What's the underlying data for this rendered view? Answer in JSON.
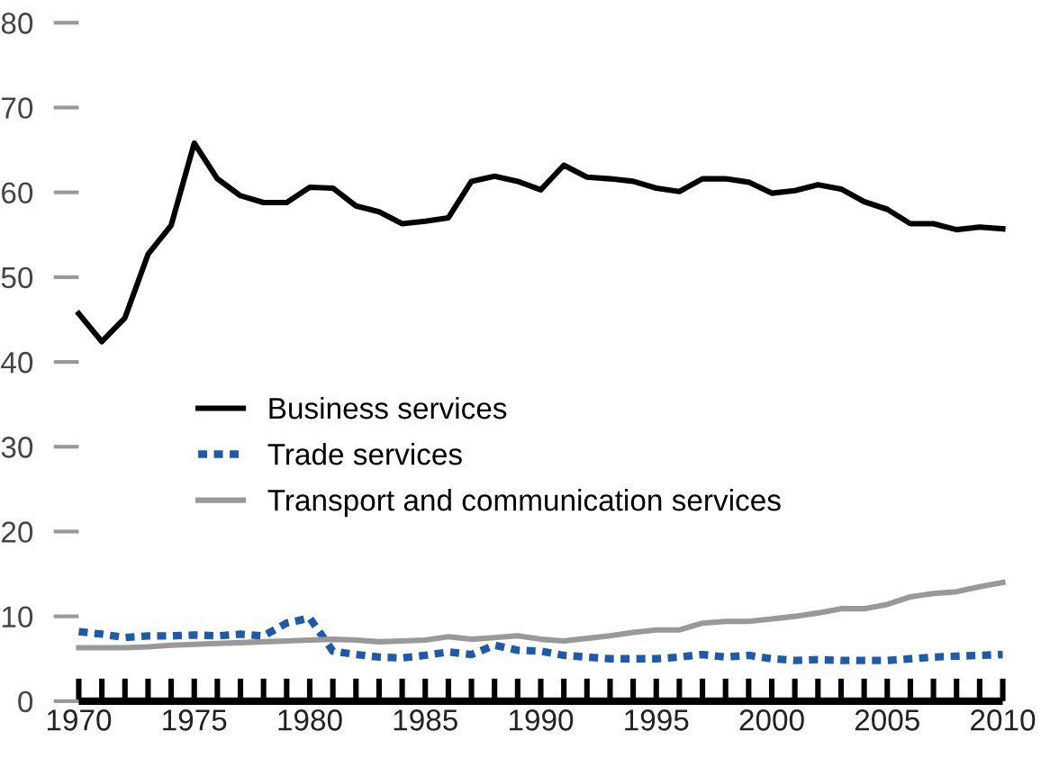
{
  "chart_data": {
    "type": "line",
    "x": [
      1970,
      1971,
      1972,
      1973,
      1974,
      1975,
      1976,
      1977,
      1978,
      1979,
      1980,
      1981,
      1982,
      1983,
      1984,
      1985,
      1986,
      1987,
      1988,
      1989,
      1990,
      1991,
      1992,
      1993,
      1994,
      1995,
      1996,
      1997,
      1998,
      1999,
      2000,
      2001,
      2002,
      2003,
      2004,
      2005,
      2006,
      2007,
      2008,
      2009,
      2010
    ],
    "series": [
      {
        "name": "Business services",
        "color": "#000000",
        "line_style": "solid",
        "values": [
          45.7,
          42.4,
          45.2,
          52.7,
          56.1,
          65.8,
          61.6,
          59.6,
          58.8,
          58.8,
          60.6,
          60.5,
          58.4,
          57.7,
          56.3,
          56.6,
          57.0,
          61.3,
          61.9,
          61.3,
          60.3,
          63.2,
          61.8,
          61.6,
          61.3,
          60.5,
          60.1,
          61.6,
          61.6,
          61.2,
          59.9,
          60.2,
          60.9,
          60.4,
          58.9,
          58.0,
          56.3,
          56.3,
          55.6,
          55.9,
          55.7
        ]
      },
      {
        "name": "Trade services",
        "color": "#1f5aa6",
        "line_style": "dotted",
        "values": [
          8.2,
          7.9,
          7.5,
          7.7,
          7.7,
          7.8,
          7.7,
          7.9,
          7.7,
          9.2,
          9.8,
          5.9,
          5.5,
          5.2,
          5.1,
          5.4,
          5.8,
          5.5,
          6.6,
          6.0,
          5.9,
          5.4,
          5.2,
          5.0,
          5.0,
          5.0,
          5.2,
          5.5,
          5.2,
          5.4,
          5.0,
          4.8,
          4.9,
          4.8,
          4.8,
          4.8,
          5.0,
          5.2,
          5.3,
          5.4,
          5.5
        ]
      },
      {
        "name": "Transport and communication services",
        "color": "#999999",
        "line_style": "solid",
        "values": [
          6.3,
          6.3,
          6.3,
          6.4,
          6.6,
          6.7,
          6.8,
          6.9,
          7.0,
          7.1,
          7.2,
          7.3,
          7.2,
          7.0,
          7.1,
          7.2,
          7.6,
          7.3,
          7.5,
          7.7,
          7.3,
          7.1,
          7.4,
          7.7,
          8.1,
          8.4,
          8.4,
          9.2,
          9.4,
          9.4,
          9.7,
          10.0,
          10.4,
          10.9,
          10.9,
          11.4,
          12.3,
          12.7,
          12.9,
          13.5,
          14.0
        ]
      }
    ],
    "xlim": [
      1970,
      2010
    ],
    "xticks": [
      1970,
      {
        "value": 1971,
        "label": null
      },
      {
        "value": 1972,
        "label": null
      },
      {
        "value": 1973,
        "label": null
      },
      {
        "value": 1974,
        "label": null
      },
      1975,
      {
        "value": 1976,
        "label": null
      },
      {
        "value": 1977,
        "label": null
      },
      {
        "value": 1978,
        "label": null
      },
      {
        "value": 1979,
        "label": null
      },
      1980,
      {
        "value": 1981,
        "label": null
      },
      {
        "value": 1982,
        "label": null
      },
      {
        "value": 1983,
        "label": null
      },
      {
        "value": 1984,
        "label": null
      },
      1985,
      {
        "value": 1986,
        "label": null
      },
      {
        "value": 1987,
        "label": null
      },
      {
        "value": 1988,
        "label": null
      },
      {
        "value": 1989,
        "label": null
      },
      1990,
      {
        "value": 1991,
        "label": null
      },
      {
        "value": 1992,
        "label": null
      },
      {
        "value": 1993,
        "label": null
      },
      {
        "value": 1994,
        "label": null
      },
      1995,
      {
        "value": 1996,
        "label": null
      },
      {
        "value": 1997,
        "label": null
      },
      {
        "value": 1998,
        "label": null
      },
      {
        "value": 1999,
        "label": null
      },
      2000,
      {
        "value": 2001,
        "label": null
      },
      {
        "value": 2002,
        "label": null
      },
      {
        "value": 2003,
        "label": null
      },
      {
        "value": 2004,
        "label": null
      },
      2005,
      {
        "value": 2006,
        "label": null
      },
      {
        "value": 2007,
        "label": null
      },
      {
        "value": 2008,
        "label": null
      },
      {
        "value": 2009,
        "label": null
      },
      2010
    ],
    "ylim": [
      0,
      80
    ],
    "yticks": [
      0,
      10,
      20,
      30,
      40,
      50,
      60,
      70,
      80
    ],
    "legend": "center left",
    "grid": false,
    "marker": "none"
  }
}
